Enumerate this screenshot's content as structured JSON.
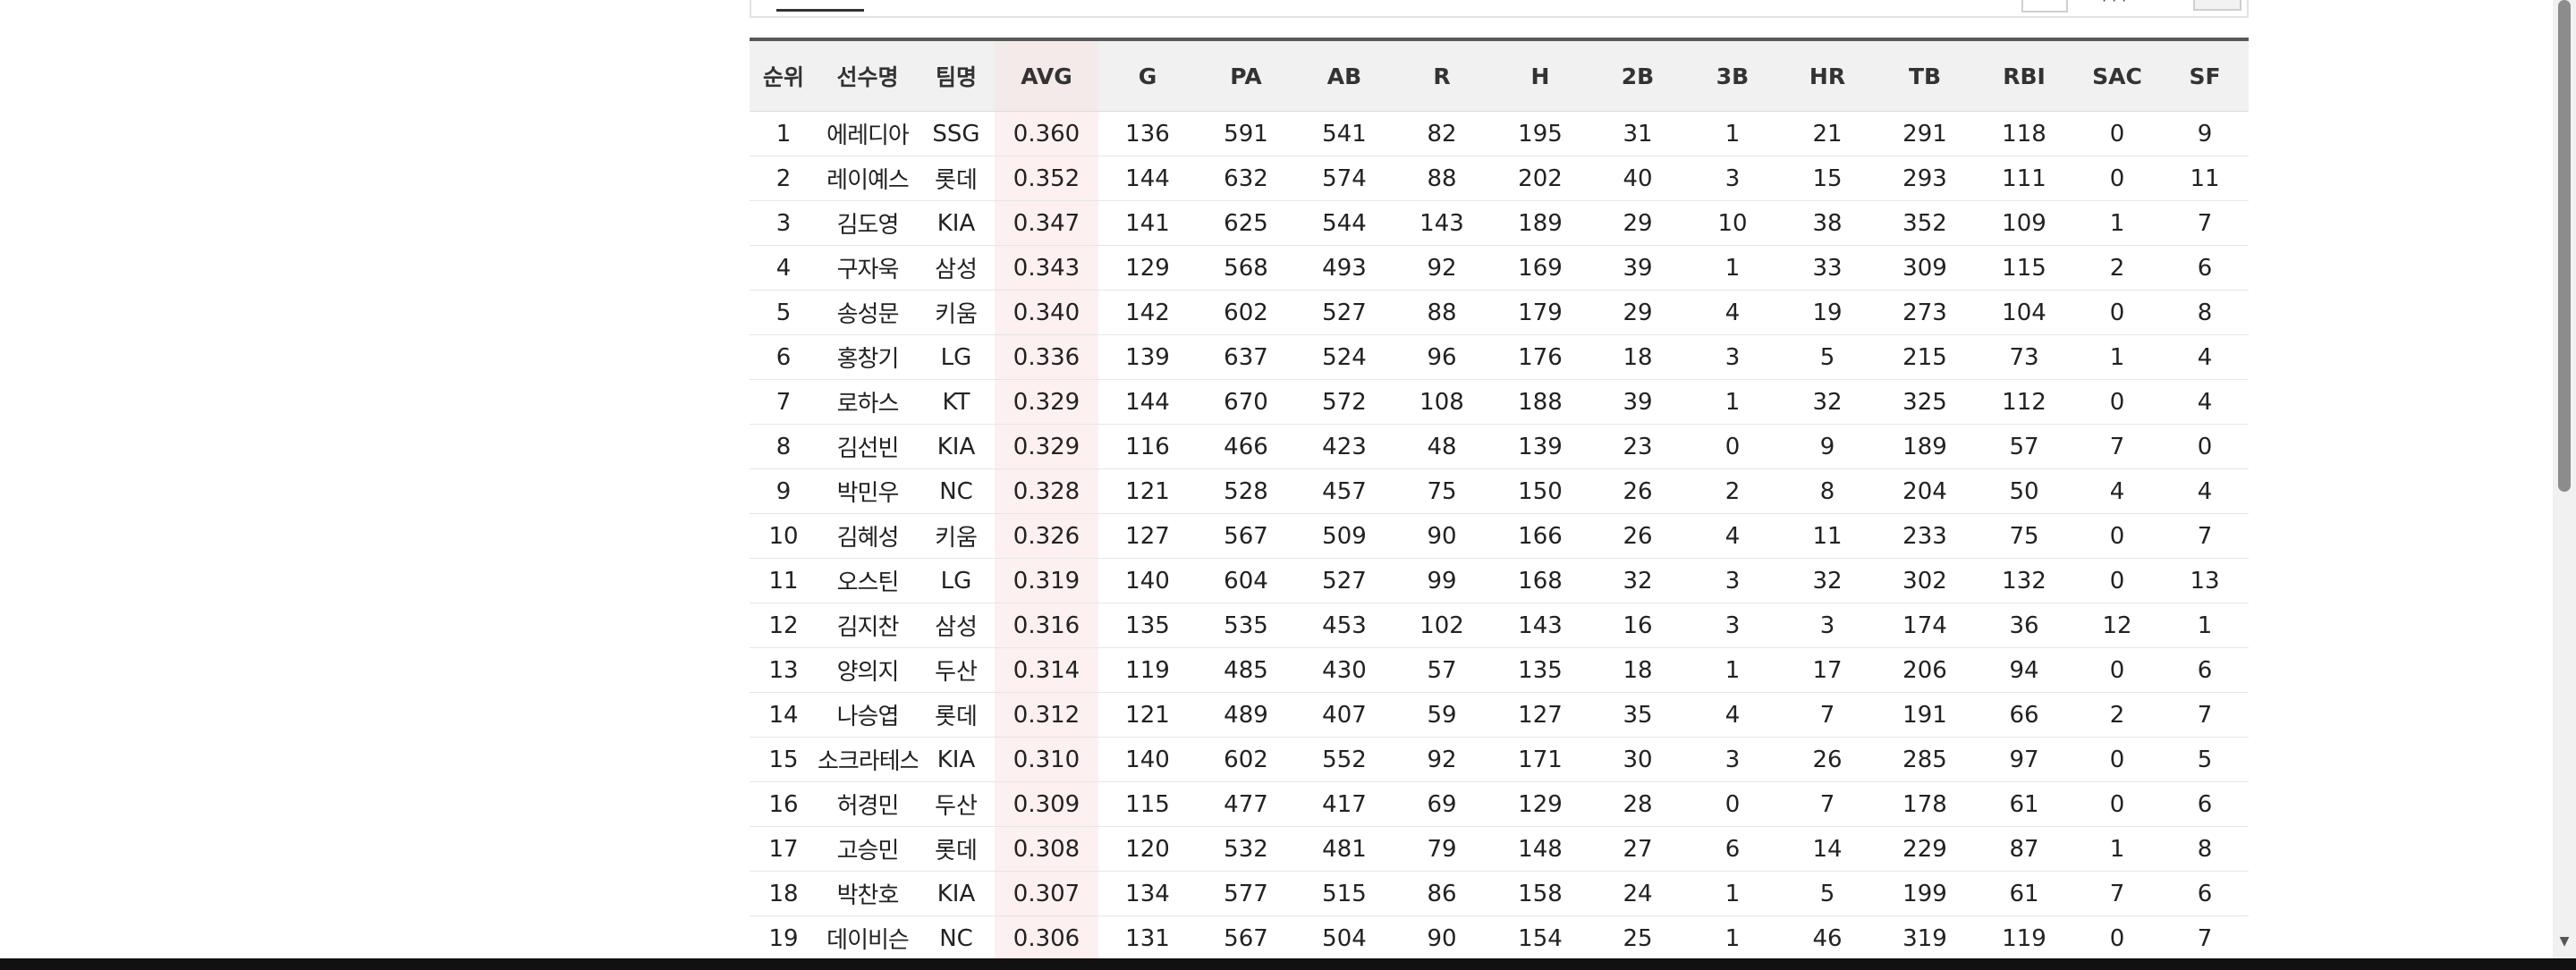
{
  "table": {
    "headers": [
      "순위",
      "선수명",
      "팀명",
      "AVG",
      "G",
      "PA",
      "AB",
      "R",
      "H",
      "2B",
      "3B",
      "HR",
      "TB",
      "RBI",
      "SAC",
      "SF"
    ],
    "rows": [
      [
        "1",
        "에레디아",
        "SSG",
        "0.360",
        "136",
        "591",
        "541",
        "82",
        "195",
        "31",
        "1",
        "21",
        "291",
        "118",
        "0",
        "9"
      ],
      [
        "2",
        "레이예스",
        "롯데",
        "0.352",
        "144",
        "632",
        "574",
        "88",
        "202",
        "40",
        "3",
        "15",
        "293",
        "111",
        "0",
        "11"
      ],
      [
        "3",
        "김도영",
        "KIA",
        "0.347",
        "141",
        "625",
        "544",
        "143",
        "189",
        "29",
        "10",
        "38",
        "352",
        "109",
        "1",
        "7"
      ],
      [
        "4",
        "구자욱",
        "삼성",
        "0.343",
        "129",
        "568",
        "493",
        "92",
        "169",
        "39",
        "1",
        "33",
        "309",
        "115",
        "2",
        "6"
      ],
      [
        "5",
        "송성문",
        "키움",
        "0.340",
        "142",
        "602",
        "527",
        "88",
        "179",
        "29",
        "4",
        "19",
        "273",
        "104",
        "0",
        "8"
      ],
      [
        "6",
        "홍창기",
        "LG",
        "0.336",
        "139",
        "637",
        "524",
        "96",
        "176",
        "18",
        "3",
        "5",
        "215",
        "73",
        "1",
        "4"
      ],
      [
        "7",
        "로하스",
        "KT",
        "0.329",
        "144",
        "670",
        "572",
        "108",
        "188",
        "39",
        "1",
        "32",
        "325",
        "112",
        "0",
        "4"
      ],
      [
        "8",
        "김선빈",
        "KIA",
        "0.329",
        "116",
        "466",
        "423",
        "48",
        "139",
        "23",
        "0",
        "9",
        "189",
        "57",
        "7",
        "0"
      ],
      [
        "9",
        "박민우",
        "NC",
        "0.328",
        "121",
        "528",
        "457",
        "75",
        "150",
        "26",
        "2",
        "8",
        "204",
        "50",
        "4",
        "4"
      ],
      [
        "10",
        "김혜성",
        "키움",
        "0.326",
        "127",
        "567",
        "509",
        "90",
        "166",
        "26",
        "4",
        "11",
        "233",
        "75",
        "0",
        "7"
      ],
      [
        "11",
        "오스틴",
        "LG",
        "0.319",
        "140",
        "604",
        "527",
        "99",
        "168",
        "32",
        "3",
        "32",
        "302",
        "132",
        "0",
        "13"
      ],
      [
        "12",
        "김지찬",
        "삼성",
        "0.316",
        "135",
        "535",
        "453",
        "102",
        "143",
        "16",
        "3",
        "3",
        "174",
        "36",
        "12",
        "1"
      ],
      [
        "13",
        "양의지",
        "두산",
        "0.314",
        "119",
        "485",
        "430",
        "57",
        "135",
        "18",
        "1",
        "17",
        "206",
        "94",
        "0",
        "6"
      ],
      [
        "14",
        "나승엽",
        "롯데",
        "0.312",
        "121",
        "489",
        "407",
        "59",
        "127",
        "35",
        "4",
        "7",
        "191",
        "66",
        "2",
        "7"
      ],
      [
        "15",
        "소크라테스",
        "KIA",
        "0.310",
        "140",
        "602",
        "552",
        "92",
        "171",
        "30",
        "3",
        "26",
        "285",
        "97",
        "0",
        "5"
      ],
      [
        "16",
        "허경민",
        "두산",
        "0.309",
        "115",
        "477",
        "417",
        "69",
        "129",
        "28",
        "0",
        "7",
        "178",
        "61",
        "0",
        "6"
      ],
      [
        "17",
        "고승민",
        "롯데",
        "0.308",
        "120",
        "532",
        "481",
        "79",
        "148",
        "27",
        "6",
        "14",
        "229",
        "87",
        "1",
        "8"
      ],
      [
        "18",
        "박찬호",
        "KIA",
        "0.307",
        "134",
        "577",
        "515",
        "86",
        "158",
        "24",
        "1",
        "5",
        "199",
        "61",
        "7",
        "6"
      ],
      [
        "19",
        "데이비슨",
        "NC",
        "0.306",
        "131",
        "567",
        "504",
        "90",
        "154",
        "25",
        "1",
        "46",
        "319",
        "119",
        "0",
        "7"
      ]
    ]
  },
  "colors": {
    "avg_highlight": "#fdf0f0",
    "header_bg": "#f1f1f1",
    "header_border": "#585858"
  },
  "icons": {
    "scroll_down": "scroll-down-arrow-icon"
  }
}
